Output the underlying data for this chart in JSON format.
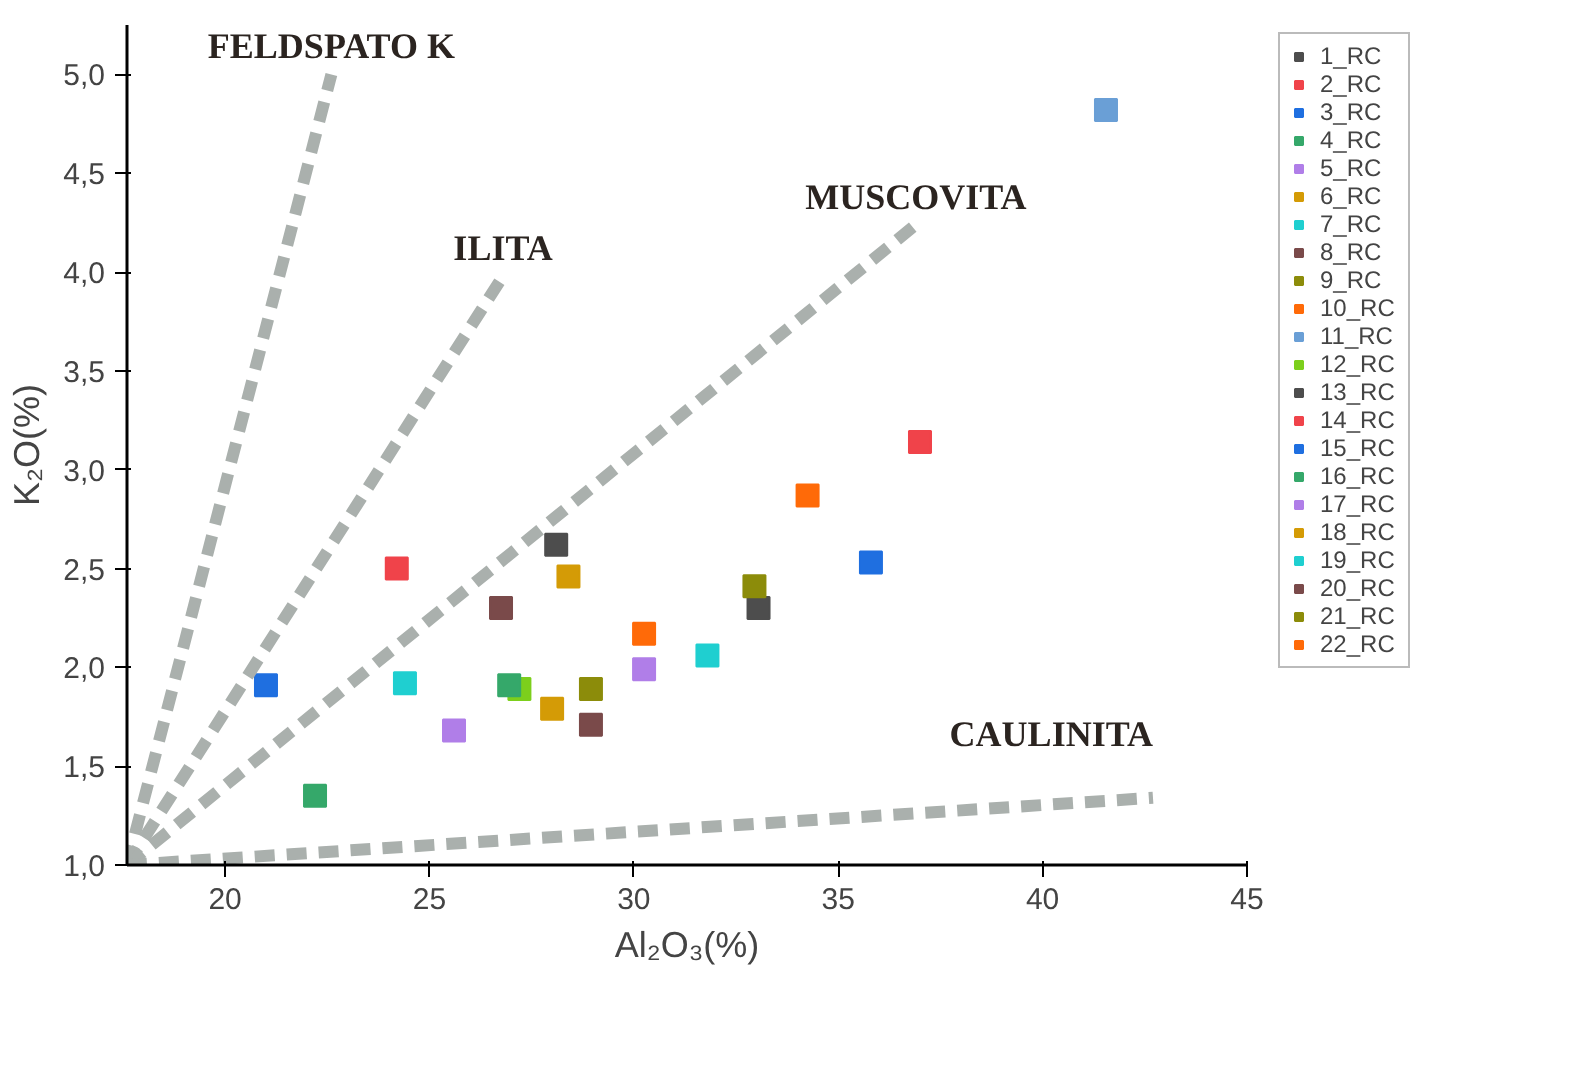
{
  "chart_data": {
    "type": "scatter",
    "xlabel": "Al₂O₃(%)",
    "ylabel": "K₂O(%)",
    "xlim": [
      17.6,
      45
    ],
    "ylim": [
      1.0,
      5.25
    ],
    "xticks": [
      20,
      25,
      30,
      35,
      40,
      45
    ],
    "yticks": [
      {
        "value": 1.0,
        "label": "1,0"
      },
      {
        "value": 1.5,
        "label": "1,5"
      },
      {
        "value": 2.0,
        "label": "2,0"
      },
      {
        "value": 2.5,
        "label": "2,5"
      },
      {
        "value": 3.0,
        "label": "3,0"
      },
      {
        "value": 3.5,
        "label": "3,5"
      },
      {
        "value": 4.0,
        "label": "4,0"
      },
      {
        "value": 4.5,
        "label": "4,5"
      },
      {
        "value": 5.0,
        "label": "5,0"
      }
    ],
    "grid": false,
    "legend": "right",
    "marker": "square",
    "series": [
      {
        "name": "1_RC",
        "color": "#4d4d4d",
        "x": [
          28.1
        ],
        "values": [
          2.62
        ]
      },
      {
        "name": "2_RC",
        "color": "#f0434a",
        "x": [
          24.2
        ],
        "values": [
          2.5
        ]
      },
      {
        "name": "3_RC",
        "color": "#1f6fe0",
        "x": [
          21.0
        ],
        "values": [
          1.91
        ]
      },
      {
        "name": "4_RC",
        "color": "#35a86a",
        "x": [
          22.2
        ],
        "values": [
          1.35
        ]
      },
      {
        "name": "5_RC",
        "color": "#b07ee8",
        "x": [
          25.6
        ],
        "values": [
          1.68
        ]
      },
      {
        "name": "6_RC",
        "color": "#d49b06",
        "x": [
          28.4
        ],
        "values": [
          2.46
        ]
      },
      {
        "name": "7_RC",
        "color": "#1fcfd0",
        "x": [
          24.4
        ],
        "values": [
          1.92
        ]
      },
      {
        "name": "8_RC",
        "color": "#7a4a4a",
        "x": [
          26.75
        ],
        "values": [
          2.3
        ]
      },
      {
        "name": "9_RC",
        "color": "#8c8c0a",
        "x": [
          28.95
        ],
        "values": [
          1.89
        ]
      },
      {
        "name": "10_RC",
        "color": "#ff6a08",
        "x": [
          30.25
        ],
        "values": [
          2.17
        ]
      },
      {
        "name": "11_RC",
        "color": "#6a9fd6",
        "x": [
          41.55
        ],
        "values": [
          4.82
        ]
      },
      {
        "name": "12_RC",
        "color": "#7ccf1c",
        "x": [
          27.2
        ],
        "values": [
          1.89
        ]
      },
      {
        "name": "13_RC",
        "color": "#4d4d4d",
        "x": [
          33.05
        ],
        "values": [
          2.3
        ]
      },
      {
        "name": "14_RC",
        "color": "#f0434a",
        "x": [
          37.0
        ],
        "values": [
          3.14
        ]
      },
      {
        "name": "15_RC",
        "color": "#1f6fe0",
        "x": [
          35.8
        ],
        "values": [
          2.53
        ]
      },
      {
        "name": "16_RC",
        "color": "#35a86a",
        "x": [
          26.95
        ],
        "values": [
          1.91
        ]
      },
      {
        "name": "17_RC",
        "color": "#b07ee8",
        "x": [
          30.25
        ],
        "values": [
          1.99
        ]
      },
      {
        "name": "18_RC",
        "color": "#d49b06",
        "x": [
          28.0
        ],
        "values": [
          1.79
        ]
      },
      {
        "name": "19_RC",
        "color": "#1fcfd0",
        "x": [
          31.8
        ],
        "values": [
          2.06
        ]
      },
      {
        "name": "20_RC",
        "color": "#7a4a4a",
        "x": [
          28.95
        ],
        "values": [
          1.71
        ]
      },
      {
        "name": "21_RC",
        "color": "#8c8c0a",
        "x": [
          32.95
        ],
        "values": [
          2.41
        ]
      },
      {
        "name": "22_RC",
        "color": "#ff6a08",
        "x": [
          34.25
        ],
        "values": [
          2.87
        ]
      },
      {
        "type": "line",
        "color": "#aab0ad",
        "line_style": "dashed",
        "marker": "none",
        "x": [
          17.6,
          22.6
        ],
        "values": [
          1.0,
          5.0
        ]
      },
      {
        "type": "line",
        "color": "#aab0ad",
        "line_style": "dashed",
        "marker": "none",
        "x": [
          17.6,
          26.8
        ],
        "values": [
          1.0,
          3.98
        ]
      },
      {
        "type": "line",
        "color": "#aab0ad",
        "line_style": "dashed",
        "marker": "none",
        "x": [
          17.6,
          36.9
        ],
        "values": [
          1.0,
          4.24
        ]
      },
      {
        "type": "line",
        "color": "#aab0ad",
        "line_style": "dashed",
        "marker": "none",
        "x": [
          17.6,
          42.7
        ],
        "values": [
          1.0,
          1.34
        ]
      }
    ],
    "annotations": [
      "FELDSPATO K",
      "ILITA",
      "MUSCOVITA",
      "CAULINITA"
    ]
  }
}
